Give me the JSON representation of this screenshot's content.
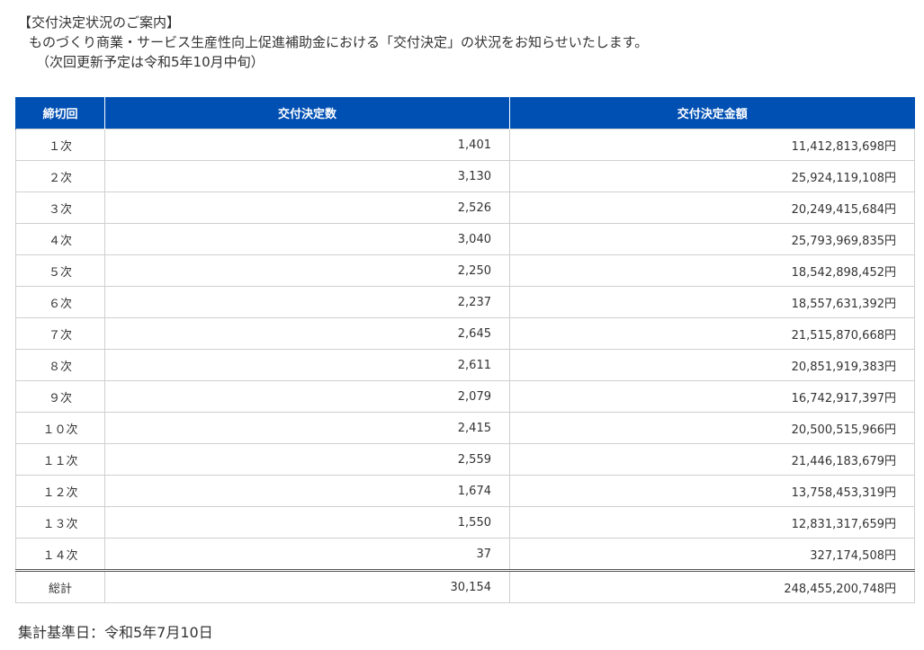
{
  "intro": {
    "heading": "【交付決定状況のご案内】",
    "description": "ものづくり商業・サービス生産性向上促進補助金における「交付決定」の状況をお知らせいたします。",
    "next_update": "（次回更新予定は令和5年10月中旬）"
  },
  "table": {
    "headers": [
      "締切回",
      "交付決定数",
      "交付決定金額"
    ],
    "rows": [
      {
        "round": "１次",
        "count": "1,401",
        "amount": "11,412,813,698円"
      },
      {
        "round": "２次",
        "count": "3,130",
        "amount": "25,924,119,108円"
      },
      {
        "round": "３次",
        "count": "2,526",
        "amount": "20,249,415,684円"
      },
      {
        "round": "４次",
        "count": "3,040",
        "amount": "25,793,969,835円"
      },
      {
        "round": "５次",
        "count": "2,250",
        "amount": "18,542,898,452円"
      },
      {
        "round": "６次",
        "count": "2,237",
        "amount": "18,557,631,392円"
      },
      {
        "round": "７次",
        "count": "2,645",
        "amount": "21,515,870,668円"
      },
      {
        "round": "８次",
        "count": "2,611",
        "amount": "20,851,919,383円"
      },
      {
        "round": "９次",
        "count": "2,079",
        "amount": "16,742,917,397円"
      },
      {
        "round": "１０次",
        "count": "2,415",
        "amount": "20,500,515,966円"
      },
      {
        "round": "１１次",
        "count": "2,559",
        "amount": "21,446,183,679円"
      },
      {
        "round": "１２次",
        "count": "1,674",
        "amount": "13,758,453,319円"
      },
      {
        "round": "１３次",
        "count": "1,550",
        "amount": "12,831,317,659円"
      },
      {
        "round": "１４次",
        "count": "37",
        "amount": "327,174,508円"
      }
    ],
    "total": {
      "label": "総計",
      "count": "30,154",
      "amount": "248,455,200,748円"
    }
  },
  "footer": {
    "tally_date": "集計基準日：令和5年7月10日"
  }
}
